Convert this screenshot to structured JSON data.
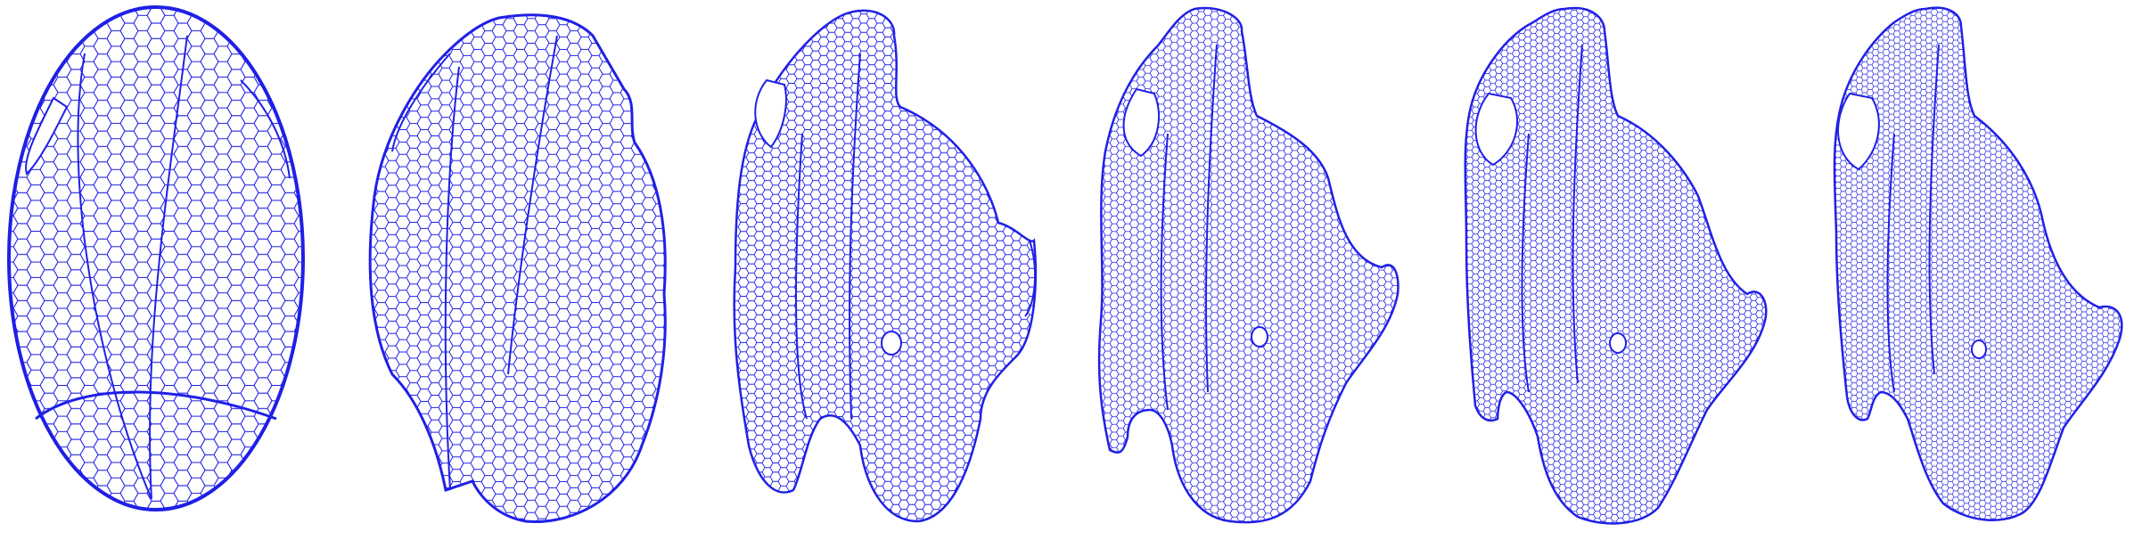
{
  "figure": {
    "background": "#ffffff",
    "mesh_color": "#2020e6",
    "panel_count": 6
  }
}
